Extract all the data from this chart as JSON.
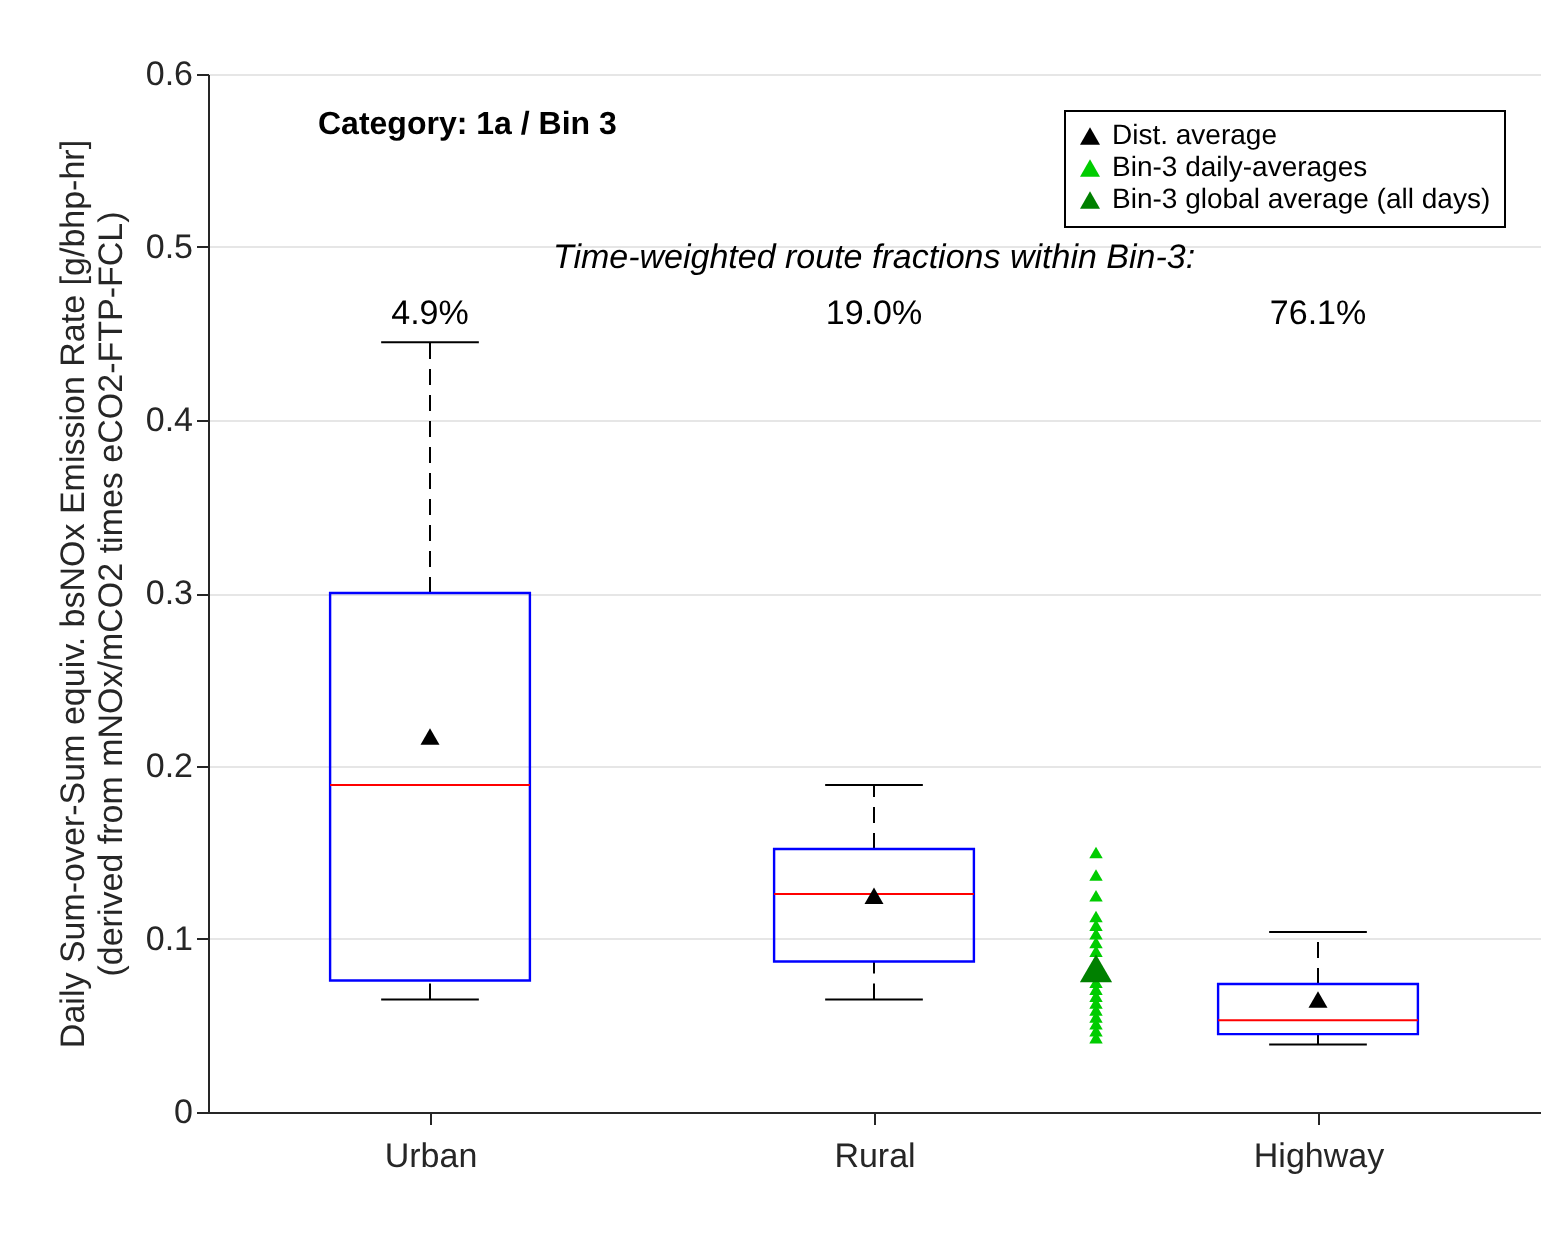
{
  "chart_data": {
    "type": "box",
    "ylabel": "Daily Sum-over-Sum equiv. bsNOx Emission Rate [g/bhp-hr]\n(derived from mNOx/mCO2 times eCO2-FTP-FCL)",
    "categories": [
      "Urban",
      null,
      "Rural",
      null,
      "Highway"
    ],
    "ylim": [
      0,
      0.6
    ],
    "yticks": [
      0,
      0.1,
      0.2,
      0.3,
      0.4,
      0.5,
      0.6
    ],
    "grid": "y",
    "legend": "top right",
    "marker": "triangle",
    "line_style": "dashed",
    "boxes": [
      {
        "low": 0.065,
        "q1": 0.076,
        "median": 0.189,
        "q3": 0.3,
        "high": 0.445
      },
      null,
      {
        "low": 0.065,
        "q1": 0.087,
        "median": 0.126,
        "q3": 0.152,
        "high": 0.189
      },
      null,
      {
        "low": 0.039,
        "q1": 0.045,
        "median": 0.053,
        "q3": 0.074,
        "high": 0.104
      }
    ],
    "series": [
      {
        "name": "Dist. average",
        "type": "scatter",
        "color": "#000000",
        "values": [
          0.217,
          null,
          0.125,
          null,
          0.065
        ]
      },
      {
        "name": "Bin-3 daily-averages",
        "type": "scatter",
        "color": "#00cc00",
        "values": [
          null,
          null,
          null,
          0.15,
          null
        ]
      },
      {
        "type": "scatter",
        "color": "#00cc00",
        "values": [
          null,
          null,
          null,
          0.137,
          null
        ]
      },
      {
        "type": "scatter",
        "color": "#00cc00",
        "values": [
          null,
          null,
          null,
          0.125,
          null
        ]
      },
      {
        "type": "scatter",
        "color": "#00cc00",
        "values": [
          null,
          null,
          null,
          0.113,
          null
        ]
      },
      {
        "type": "scatter",
        "color": "#00cc00",
        "values": [
          null,
          null,
          null,
          0.108,
          null
        ]
      },
      {
        "type": "scatter",
        "color": "#00cc00",
        "values": [
          null,
          null,
          null,
          0.103,
          null
        ]
      },
      {
        "type": "scatter",
        "color": "#00cc00",
        "values": [
          null,
          null,
          null,
          0.098,
          null
        ]
      },
      {
        "type": "scatter",
        "color": "#00cc00",
        "values": [
          null,
          null,
          null,
          0.093,
          null
        ]
      },
      {
        "type": "scatter",
        "color": "#00cc00",
        "values": [
          null,
          null,
          null,
          0.075,
          null
        ]
      },
      {
        "type": "scatter",
        "color": "#00cc00",
        "values": [
          null,
          null,
          null,
          0.071,
          null
        ]
      },
      {
        "type": "scatter",
        "color": "#00cc00",
        "values": [
          null,
          null,
          null,
          0.067,
          null
        ]
      },
      {
        "type": "scatter",
        "color": "#00cc00",
        "values": [
          null,
          null,
          null,
          0.063,
          null
        ]
      },
      {
        "type": "scatter",
        "color": "#00cc00",
        "values": [
          null,
          null,
          null,
          0.059,
          null
        ]
      },
      {
        "type": "scatter",
        "color": "#00cc00",
        "values": [
          null,
          null,
          null,
          0.055,
          null
        ]
      },
      {
        "type": "scatter",
        "color": "#00cc00",
        "values": [
          null,
          null,
          null,
          0.051,
          null
        ]
      },
      {
        "type": "scatter",
        "color": "#00cc00",
        "values": [
          null,
          null,
          null,
          0.047,
          null
        ]
      },
      {
        "type": "scatter",
        "color": "#00cc00",
        "values": [
          null,
          null,
          null,
          0.043,
          null
        ]
      },
      {
        "name": "Bin-3 global average (all days)",
        "type": "scatter",
        "color": "#008000",
        "values": [
          null,
          null,
          null,
          0.083,
          null
        ]
      }
    ],
    "annotations": [
      "Category: 1a / Bin 3",
      "Time-weighted route fractions within Bin-3:",
      "4.9%",
      "19.0%",
      "76.1%"
    ]
  }
}
